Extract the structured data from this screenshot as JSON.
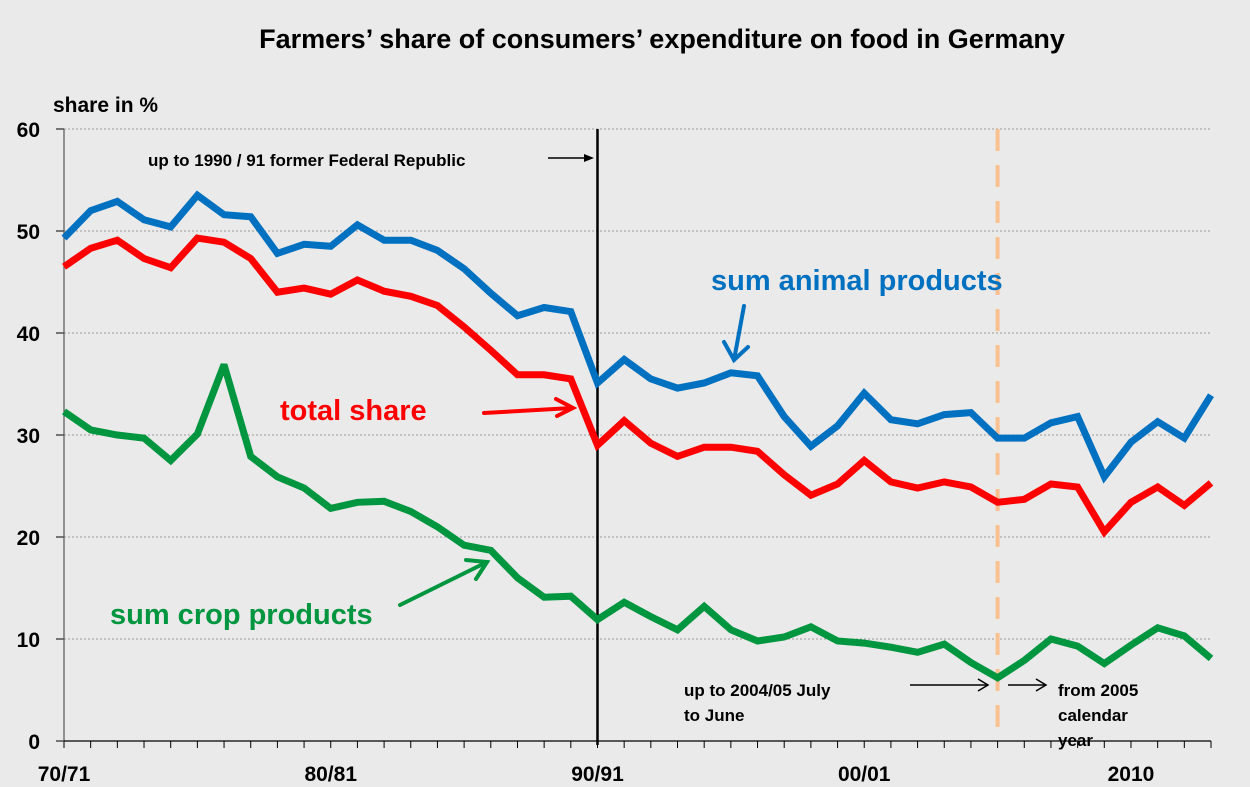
{
  "chart_data": {
    "type": "line",
    "title": "Farmers’ share of consumers’ expenditure on food in Germany",
    "xlabel": "",
    "ylabel": "share in %",
    "ylim": [
      0,
      60
    ],
    "yticks": [
      "0",
      "10",
      "20",
      "30",
      "40",
      "50",
      "60"
    ],
    "grid": true,
    "x": [
      "70/71",
      "71/72",
      "72/73",
      "73/74",
      "74/75",
      "75/76",
      "76/77",
      "77/78",
      "78/79",
      "79/80",
      "80/81",
      "81/82",
      "82/83",
      "83/84",
      "84/85",
      "85/86",
      "86/87",
      "87/88",
      "88/89",
      "89/90",
      "90/91",
      "91/92",
      "92/93",
      "93/94",
      "94/95",
      "95/96",
      "96/97",
      "97/98",
      "98/99",
      "99/00",
      "00/01",
      "01/02",
      "02/03",
      "03/04",
      "04/05",
      "2005",
      "2006",
      "2007",
      "2008",
      "2009",
      "2010",
      "2011",
      "2012",
      "2013"
    ],
    "xtick_labels": [
      {
        "index": 0,
        "label": "70/71"
      },
      {
        "index": 10,
        "label": "80/81"
      },
      {
        "index": 20,
        "label": "90/91"
      },
      {
        "index": 30,
        "label": "00/01"
      },
      {
        "index": 40,
        "label": "2010"
      }
    ],
    "series": [
      {
        "name": "sum animal products",
        "color": "#0070C0",
        "values": [
          49.3,
          52.0,
          52.9,
          51.1,
          50.4,
          53.5,
          51.6,
          51.4,
          47.8,
          48.7,
          48.5,
          50.6,
          49.1,
          49.1,
          48.1,
          46.3,
          43.9,
          41.7,
          42.5,
          42.1,
          35.1,
          37.4,
          35.5,
          34.6,
          35.1,
          36.1,
          35.8,
          31.8,
          28.9,
          30.9,
          34.1,
          31.5,
          31.1,
          32.0,
          32.2,
          29.7,
          29.7,
          31.2,
          31.8,
          25.9,
          29.3,
          31.3,
          29.7,
          33.9
        ]
      },
      {
        "name": "total share",
        "color": "#FF0000",
        "values": [
          46.5,
          48.3,
          49.1,
          47.3,
          46.4,
          49.3,
          48.9,
          47.3,
          44.0,
          44.4,
          43.8,
          45.2,
          44.1,
          43.6,
          42.7,
          40.6,
          38.3,
          35.9,
          35.9,
          35.5,
          29.0,
          31.4,
          29.2,
          27.9,
          28.8,
          28.8,
          28.4,
          26.1,
          24.1,
          25.2,
          27.5,
          25.4,
          24.8,
          25.4,
          24.9,
          23.4,
          23.7,
          25.2,
          24.9,
          20.5,
          23.4,
          24.9,
          23.1,
          25.3
        ]
      },
      {
        "name": "sum crop products",
        "color": "#00953F",
        "values": [
          32.3,
          30.5,
          30.0,
          29.7,
          27.5,
          30.1,
          36.9,
          27.9,
          25.9,
          24.8,
          22.8,
          23.4,
          23.5,
          22.5,
          21.0,
          19.2,
          18.7,
          16.0,
          14.1,
          14.2,
          11.9,
          13.6,
          12.2,
          10.9,
          13.2,
          10.9,
          9.8,
          10.2,
          11.2,
          9.8,
          9.6,
          9.2,
          8.7,
          9.5,
          7.7,
          6.2,
          7.9,
          10.0,
          9.3,
          7.6,
          9.4,
          11.1,
          10.3,
          8.1
        ]
      }
    ],
    "vertical_markers": [
      {
        "index": 20,
        "style": "solid",
        "color": "#000000",
        "label": "up to 1990 / 91 former Federal Republic"
      },
      {
        "index": 35,
        "style": "dashed",
        "color": "#FAC090"
      }
    ],
    "annotations": {
      "federal_republic": "up to 1990 / 91 former Federal Republic",
      "fiscal_year_line1": "up to 2004/05  July",
      "fiscal_year_line2": "to June",
      "calendar_line1": "from 2005",
      "calendar_line2": "calendar",
      "calendar_line3": "year",
      "label_animal": "sum animal products",
      "label_total": "total share",
      "label_crop": "sum crop products"
    },
    "legend": "none (inline labels)"
  },
  "colors": {
    "background": "#EAEAEA",
    "gridline": "#9a9a9a",
    "axis": "#000000"
  }
}
